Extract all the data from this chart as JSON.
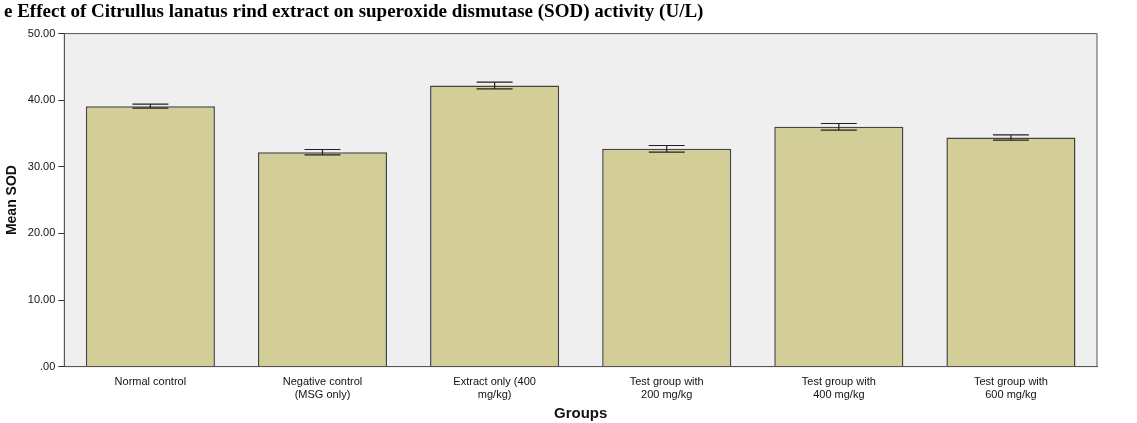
{
  "chart_data": {
    "type": "bar",
    "title": "e Effect of Citrullus lanatus rind extract on superoxide dismutase (SOD) activity (U/L)",
    "xlabel": "Groups",
    "ylabel": "Mean SOD",
    "categories": [
      "Normal control",
      "Negative control\n(MSG only)",
      "Extract only (400\nmg/kg)",
      "Test group with\n200 mg/kg",
      "Test group with\n400 mg/kg",
      "Test group with\n600 mg/kg"
    ],
    "values": [
      39.1,
      32.2,
      42.2,
      32.7,
      36.0,
      34.4
    ],
    "errors": [
      0.3,
      0.4,
      0.5,
      0.5,
      0.5,
      0.4
    ],
    "color": "#d3ce97",
    "ylim": [
      0,
      50
    ],
    "yticks": [
      {
        "value": 0,
        "label": ".00"
      },
      {
        "value": 10,
        "label": "10.00"
      },
      {
        "value": 20,
        "label": "20.00"
      },
      {
        "value": 30,
        "label": "30.00"
      },
      {
        "value": 40,
        "label": "40.00"
      },
      {
        "value": 50,
        "label": "50.00"
      }
    ],
    "grid": false
  }
}
